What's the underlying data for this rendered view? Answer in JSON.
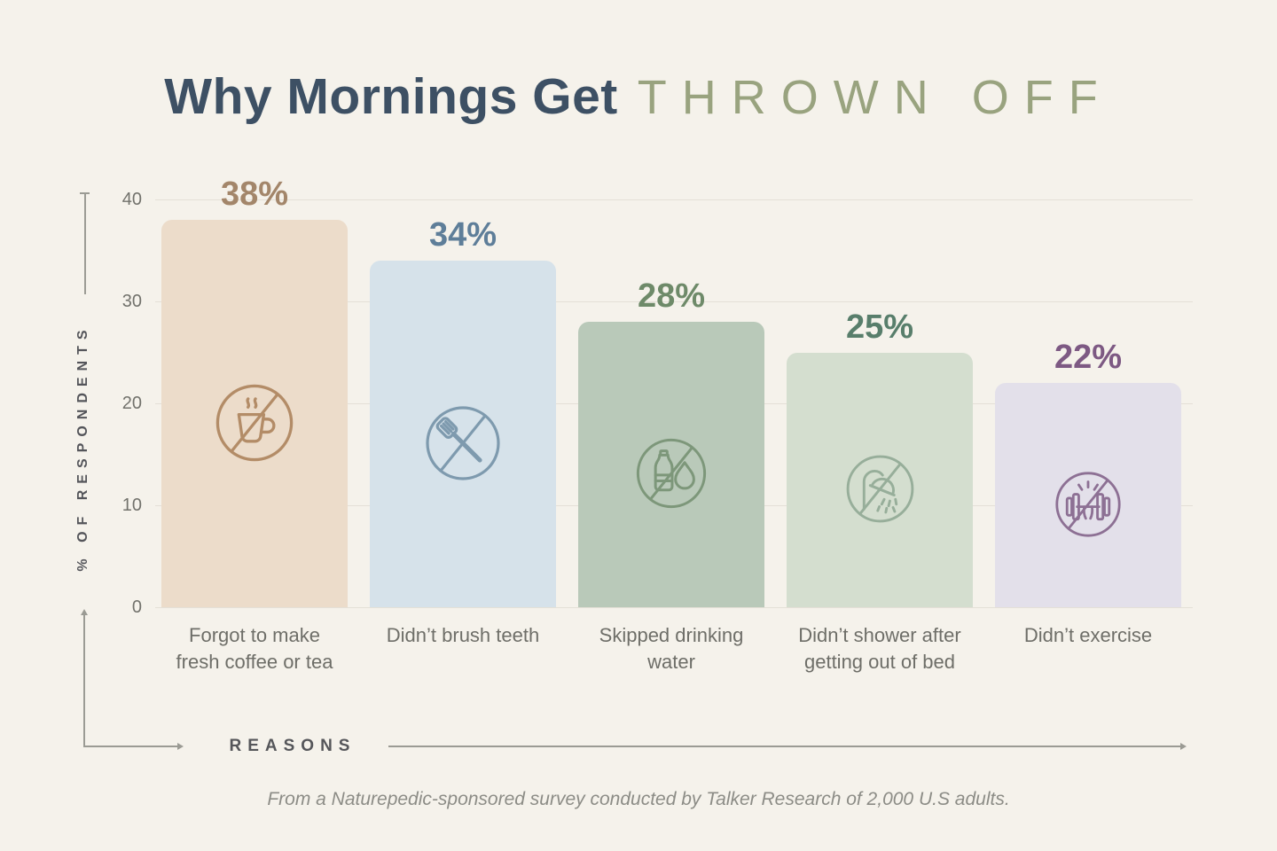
{
  "title": {
    "primary": "Why Mornings Get",
    "secondary": "THROWN OFF"
  },
  "y_axis": {
    "label": "% OF RESPONDENTS"
  },
  "x_axis": {
    "label": "REASONS"
  },
  "source": "From a Naturepedic-sponsored survey conducted by Talker Research of 2,000 U.S adults.",
  "colors": {
    "background": "#f5f2eb",
    "title_primary": "#3d5064",
    "title_secondary": "#99a37f",
    "gridline": "#e4e0d7",
    "axis_decor": "#9b9b94",
    "tick_text": "#72726c",
    "category_text": "#6e6e68",
    "source_text": "#8c8c86"
  },
  "chart_data": {
    "type": "bar",
    "title": "Why Mornings Get THROWN OFF",
    "xlabel": "REASONS",
    "ylabel": "% OF RESPONDENTS",
    "ylim": [
      0,
      40
    ],
    "yticks": [
      0,
      10,
      20,
      30,
      40
    ],
    "grid": true,
    "legend": false,
    "categories": [
      "Forgot to make fresh coffee or tea",
      "Didn’t brush teeth",
      "Skipped drinking water",
      "Didn’t shower after getting out of bed",
      "Didn’t exercise"
    ],
    "values": [
      38,
      34,
      28,
      25,
      22
    ],
    "bars": [
      {
        "category": "Forgot to make\nfresh coffee or tea",
        "value": 38,
        "label": "38%",
        "fill": "#ecdcca",
        "label_color": "#a3866a",
        "icon": "no-coffee-icon",
        "icon_color": "#b38c67"
      },
      {
        "category": "Didn’t brush teeth",
        "value": 34,
        "label": "34%",
        "fill": "#d6e2ea",
        "label_color": "#5e7e99",
        "icon": "no-toothbrush-icon",
        "icon_color": "#7e9aae"
      },
      {
        "category": "Skipped drinking\nwater",
        "value": 28,
        "label": "28%",
        "fill": "#b9c9b9",
        "label_color": "#6e8a69",
        "icon": "no-water-icon",
        "icon_color": "#7d977a"
      },
      {
        "category": "Didn’t shower after\ngetting out of bed",
        "value": 25,
        "label": "25%",
        "fill": "#d4decf",
        "label_color": "#587e6b",
        "icon": "no-shower-icon",
        "icon_color": "#97ae9a"
      },
      {
        "category": "Didn’t exercise",
        "value": 22,
        "label": "22%",
        "fill": "#e3e0ea",
        "label_color": "#7d5983",
        "icon": "no-exercise-icon",
        "icon_color": "#8d7094"
      }
    ]
  }
}
